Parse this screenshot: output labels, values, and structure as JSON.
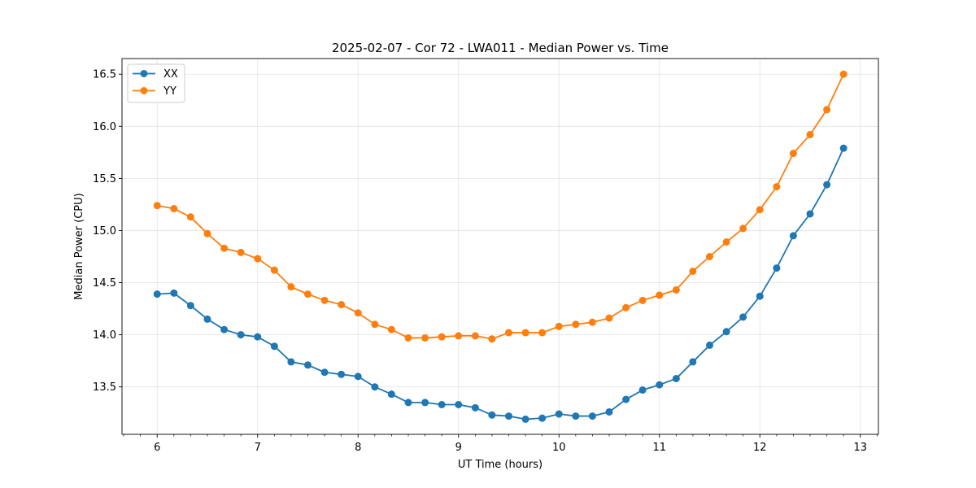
{
  "chart_data": {
    "type": "line",
    "title": "2025-02-07 - Cor 72 - LWA011 - Median Power vs. Time",
    "xlabel": "UT Time (hours)",
    "ylabel": "Median Power (CPU)",
    "xlim": [
      5.65,
      13.18
    ],
    "ylim": [
      13.045,
      16.65
    ],
    "xticks": [
      6,
      7,
      8,
      9,
      10,
      11,
      12,
      13
    ],
    "xtick_labels": [
      "6",
      "7",
      "8",
      "9",
      "10",
      "11",
      "12",
      "13"
    ],
    "x_minor_step": 0.166667,
    "yticks": [
      13.5,
      14.0,
      14.5,
      15.0,
      15.5,
      16.0,
      16.5
    ],
    "ytick_labels": [
      "13.5",
      "14.0",
      "14.5",
      "15.0",
      "15.5",
      "16.0",
      "16.5"
    ],
    "grid": true,
    "legend_position": "top-left",
    "x": [
      6.0,
      6.167,
      6.333,
      6.5,
      6.667,
      6.833,
      7.0,
      7.167,
      7.333,
      7.5,
      7.667,
      7.833,
      8.0,
      8.167,
      8.333,
      8.5,
      8.667,
      8.833,
      9.0,
      9.167,
      9.333,
      9.5,
      9.667,
      9.833,
      10.0,
      10.167,
      10.333,
      10.5,
      10.667,
      10.833,
      11.0,
      11.167,
      11.333,
      11.5,
      11.667,
      11.833,
      12.0,
      12.167,
      12.333,
      12.5,
      12.667,
      12.833
    ],
    "series": [
      {
        "name": "XX",
        "color": "#1f77b4",
        "values": [
          14.39,
          14.4,
          14.28,
          14.15,
          14.05,
          14.0,
          13.98,
          13.89,
          13.74,
          13.71,
          13.64,
          13.62,
          13.6,
          13.5,
          13.43,
          13.35,
          13.35,
          13.33,
          13.33,
          13.3,
          13.23,
          13.22,
          13.19,
          13.2,
          13.24,
          13.22,
          13.22,
          13.26,
          13.38,
          13.47,
          13.52,
          13.58,
          13.74,
          13.9,
          14.03,
          14.17,
          14.37,
          14.64,
          14.95,
          15.16,
          15.44,
          15.79
        ]
      },
      {
        "name": "YY",
        "color": "#ff7f0e",
        "values": [
          15.24,
          15.21,
          15.13,
          14.97,
          14.83,
          14.79,
          14.73,
          14.62,
          14.46,
          14.39,
          14.33,
          14.29,
          14.21,
          14.1,
          14.05,
          13.97,
          13.97,
          13.98,
          13.99,
          13.99,
          13.96,
          14.02,
          14.02,
          14.02,
          14.08,
          14.1,
          14.12,
          14.16,
          14.26,
          14.33,
          14.38,
          14.43,
          14.61,
          14.75,
          14.89,
          15.02,
          15.2,
          15.42,
          15.74,
          15.92,
          16.16,
          16.5
        ]
      }
    ]
  }
}
